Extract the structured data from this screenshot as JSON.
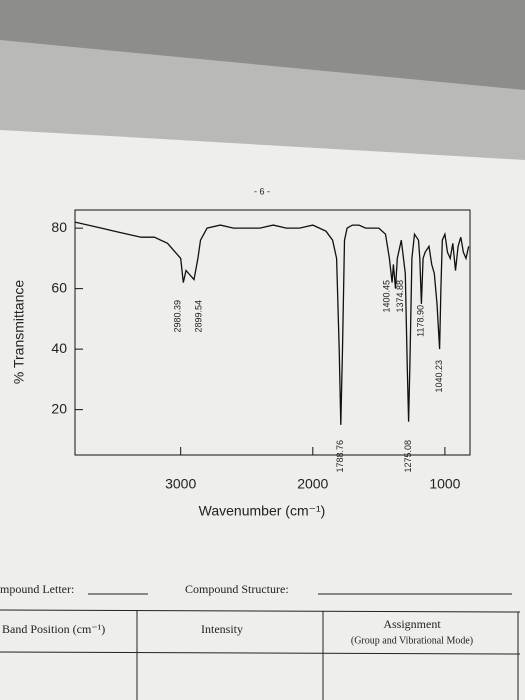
{
  "page": {
    "page_number": "- 6 -",
    "compound_letter": "mpound Letter:",
    "compound_structure": "Compound Structure:",
    "table_headers": [
      "Band Position (cm⁻¹)",
      "Intensity",
      "Assignment"
    ],
    "assignment_note": "(Group and Vibrational Mode)"
  },
  "chart_data": {
    "type": "line",
    "x_label": "Wavenumber (cm⁻¹)",
    "y_label": "% Transmittance",
    "x": [
      3800,
      3700,
      3600,
      3500,
      3400,
      3300,
      3200,
      3100,
      3000,
      2980,
      2960,
      2899,
      2870,
      2850,
      2800,
      2700,
      2600,
      2500,
      2400,
      2300,
      2200,
      2100,
      2000,
      1950,
      1900,
      1850,
      1820,
      1800,
      1788,
      1775,
      1760,
      1740,
      1700,
      1650,
      1600,
      1500,
      1450,
      1420,
      1400,
      1390,
      1374,
      1360,
      1330,
      1300,
      1285,
      1275,
      1265,
      1250,
      1230,
      1200,
      1190,
      1178,
      1165,
      1150,
      1120,
      1100,
      1080,
      1060,
      1040,
      1030,
      1020,
      1000,
      980,
      960,
      940,
      920,
      900,
      880,
      860,
      840,
      820
    ],
    "series": [
      {
        "name": "spectrum",
        "color": "#111111",
        "values": [
          82,
          81,
          80,
          79,
          78,
          77,
          77,
          75,
          70,
          62,
          66,
          63,
          70,
          76,
          80,
          81,
          80,
          80,
          80,
          81,
          80,
          80,
          81,
          80,
          79,
          76,
          70,
          40,
          15,
          40,
          76,
          80,
          81,
          81,
          80,
          80,
          78,
          70,
          62,
          68,
          60,
          70,
          76,
          65,
          35,
          16,
          35,
          70,
          78,
          76,
          70,
          55,
          70,
          72,
          74,
          68,
          65,
          55,
          40,
          60,
          76,
          78,
          72,
          70,
          75,
          66,
          74,
          77,
          72,
          70,
          74
        ]
      }
    ],
    "xlim": [
      3800,
      810
    ],
    "xticks": [
      3000,
      2000,
      1000
    ],
    "ylim": [
      5,
      86
    ],
    "yticks": [
      20,
      40,
      60,
      80
    ],
    "annotations": [
      {
        "x": 2980.39,
        "label": "2980.39"
      },
      {
        "x": 2899.54,
        "label": "2899.54"
      },
      {
        "x": 1788.76,
        "label": "1788.76"
      },
      {
        "x": 1400.45,
        "label": "1400.45"
      },
      {
        "x": 1374.88,
        "label": "1374.88"
      },
      {
        "x": 1275.08,
        "label": "1275.08"
      },
      {
        "x": 1178.9,
        "label": "1178.90"
      },
      {
        "x": 1040.23,
        "label": "1040.23"
      }
    ]
  }
}
